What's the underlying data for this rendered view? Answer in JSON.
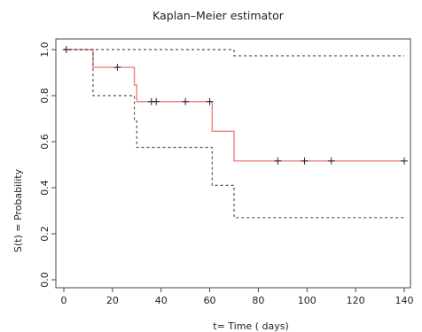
{
  "chart_data": {
    "type": "line",
    "title": "Kaplan–Meier estimator",
    "xlabel": "t= Time ( days)",
    "ylabel": "S(t) = Probability",
    "xlim": [
      0,
      140
    ],
    "ylim": [
      0,
      1
    ],
    "x_ticks": [
      "0",
      "20",
      "40",
      "60",
      "80",
      "100",
      "120",
      "140"
    ],
    "y_ticks": [
      "0.0",
      "0.2",
      "0.4",
      "0.6",
      "0.8",
      "1.0"
    ],
    "grid": false,
    "series": [
      {
        "style": "step-solid",
        "color": "#f08080",
        "x": [
          0,
          12,
          29,
          30,
          61,
          70,
          140
        ],
        "y": [
          1.0,
          0.923,
          0.846,
          0.774,
          0.645,
          0.516,
          0.516
        ]
      },
      {
        "style": "step-dashed",
        "color": "#555555",
        "x": [
          0,
          70,
          140
        ],
        "y": [
          1.0,
          0.973,
          0.973
        ]
      },
      {
        "style": "step-dashed",
        "color": "#555555",
        "x": [
          0,
          12,
          29,
          30,
          60,
          61,
          70,
          140
        ],
        "y": [
          1.0,
          0.8,
          0.69,
          0.575,
          0.575,
          0.41,
          0.27,
          0.27
        ]
      }
    ],
    "censored": {
      "marker": "+",
      "points": [
        {
          "x": 1,
          "y": 1.0
        },
        {
          "x": 22,
          "y": 0.923
        },
        {
          "x": 36,
          "y": 0.774
        },
        {
          "x": 38,
          "y": 0.774
        },
        {
          "x": 50,
          "y": 0.774
        },
        {
          "x": 60,
          "y": 0.774
        },
        {
          "x": 88,
          "y": 0.516
        },
        {
          "x": 99,
          "y": 0.516
        },
        {
          "x": 110,
          "y": 0.516
        },
        {
          "x": 140,
          "y": 0.516
        }
      ]
    }
  }
}
